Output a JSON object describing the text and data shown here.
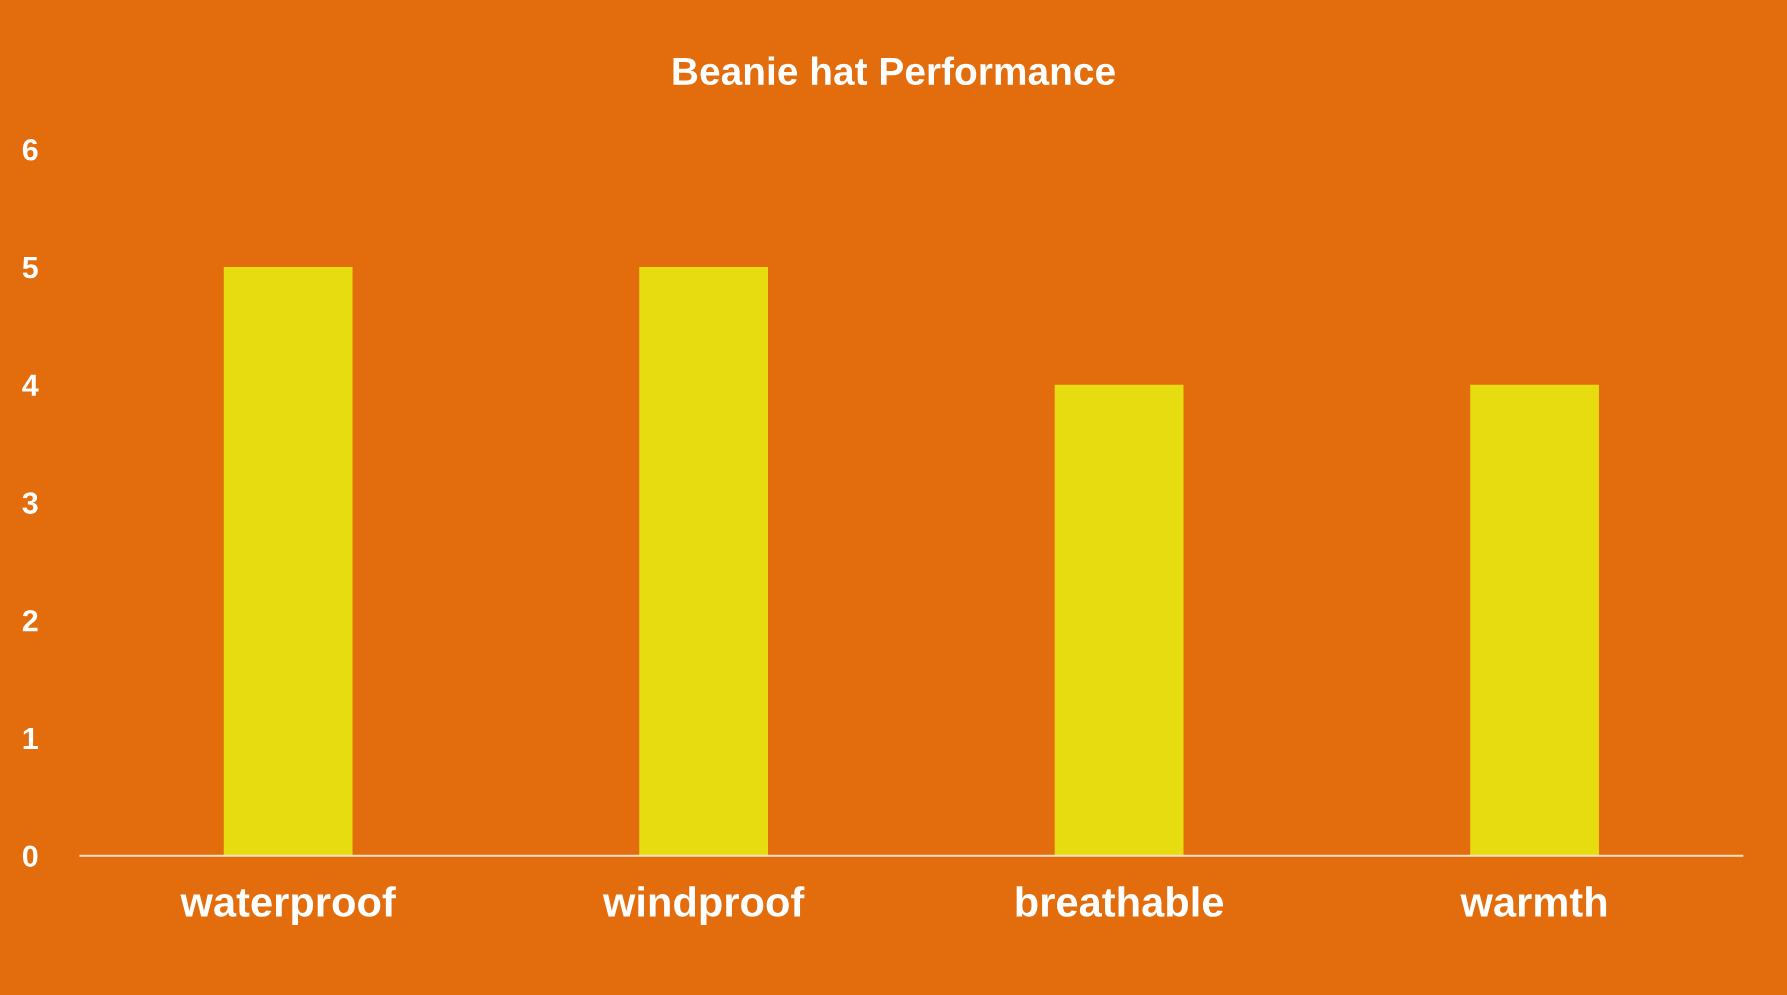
{
  "chart_data": {
    "type": "bar",
    "title": "Beanie hat Performance",
    "categories": [
      "waterproof",
      "windproof",
      "breathable",
      "warmth"
    ],
    "values": [
      5,
      5,
      4,
      4
    ],
    "color": "#e6dc10",
    "ylim": [
      0,
      6
    ],
    "yticks": [
      0,
      1,
      2,
      3,
      4,
      5,
      6
    ],
    "grid": false,
    "legend": false
  }
}
